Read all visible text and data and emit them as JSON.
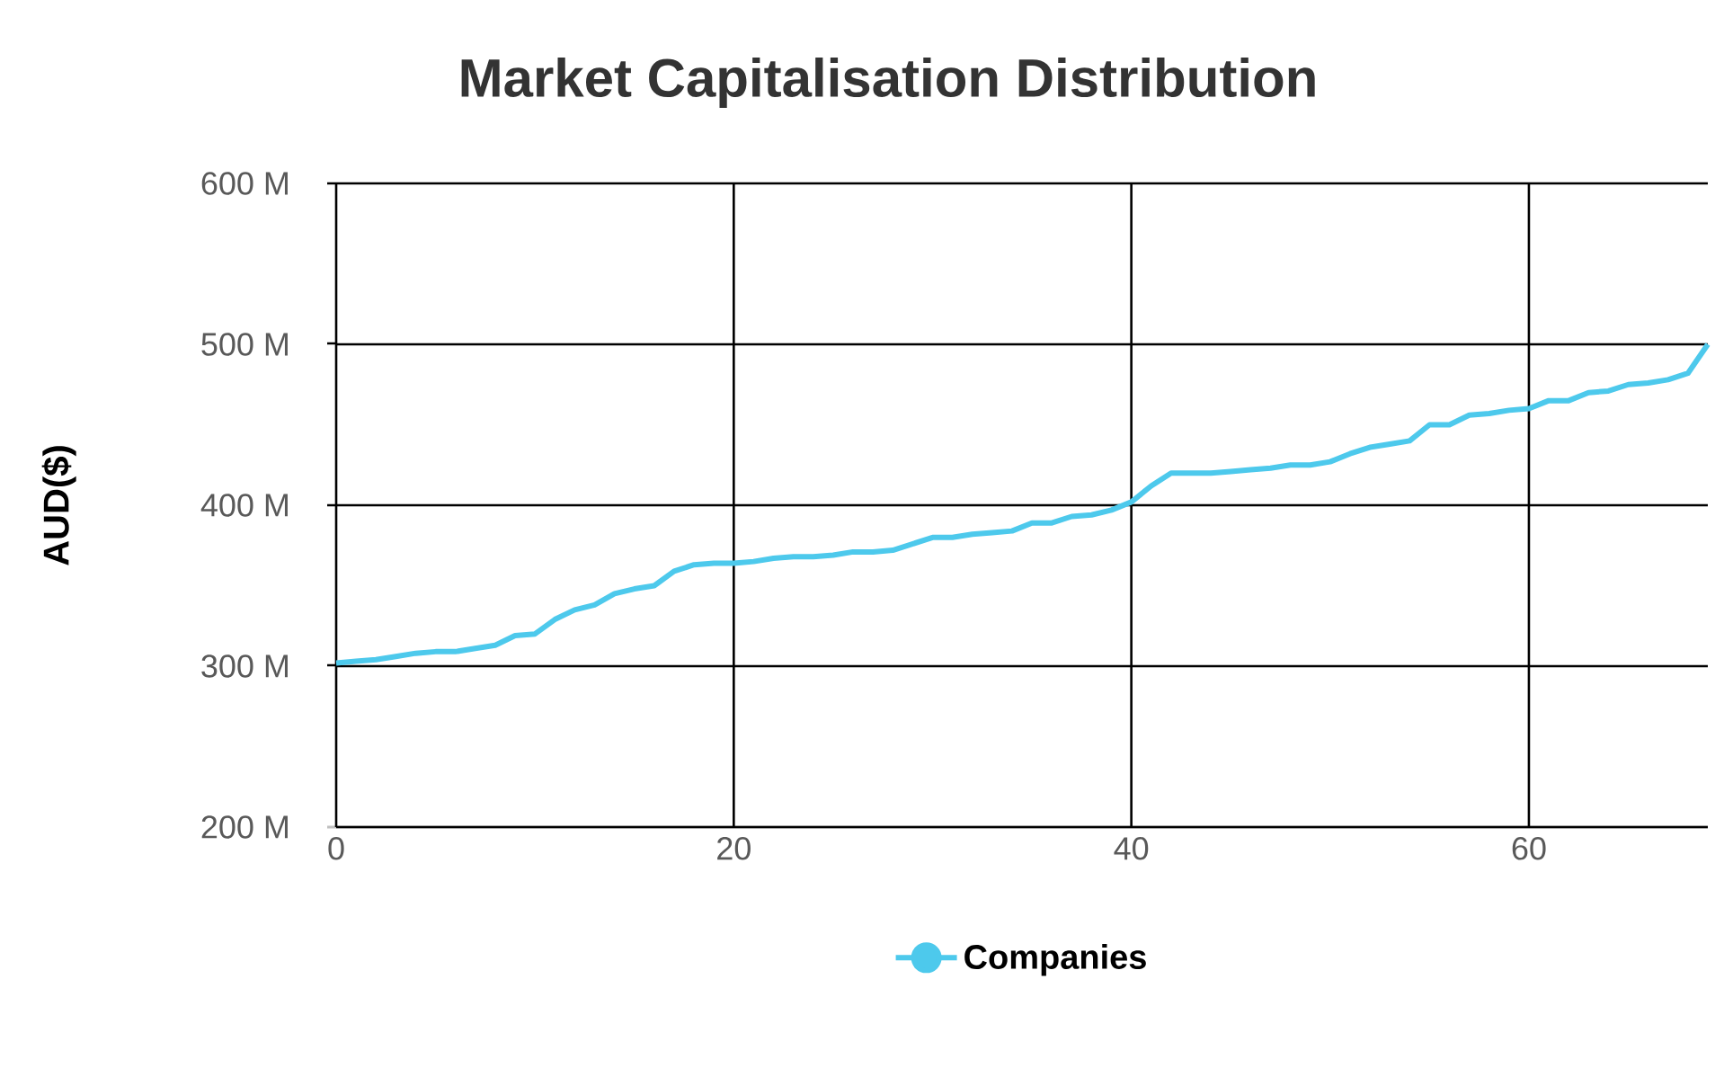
{
  "chart_data": {
    "type": "line",
    "title": "Market Capitalisation Distribution",
    "ylabel": "AUD($)",
    "x": [
      0,
      1,
      2,
      3,
      4,
      5,
      6,
      7,
      8,
      9,
      10,
      11,
      12,
      13,
      14,
      15,
      16,
      17,
      18,
      19,
      20,
      21,
      22,
      23,
      24,
      25,
      26,
      27,
      28,
      29,
      30,
      31,
      32,
      33,
      34,
      35,
      36,
      37,
      38,
      39,
      40,
      41,
      42,
      43,
      44,
      45,
      46,
      47,
      48,
      49,
      50,
      51,
      52,
      53,
      54,
      55,
      56,
      57,
      58,
      59,
      60,
      61,
      62,
      63,
      64,
      65,
      66,
      67,
      68,
      69
    ],
    "series": [
      {
        "name": "Companies",
        "color": "#4dc9ec",
        "values": [
          302,
          303,
          304,
          306,
          308,
          309,
          309,
          311,
          313,
          319,
          320,
          329,
          335,
          338,
          345,
          348,
          350,
          359,
          363,
          364,
          364,
          365,
          367,
          368,
          368,
          369,
          371,
          371,
          372,
          376,
          380,
          380,
          382,
          383,
          384,
          389,
          389,
          393,
          394,
          397,
          402,
          412,
          420,
          420,
          420,
          421,
          422,
          423,
          425,
          425,
          427,
          432,
          436,
          438,
          440,
          450,
          450,
          456,
          457,
          459,
          460,
          465,
          465,
          470,
          471,
          475,
          476,
          478,
          482,
          500
        ]
      }
    ],
    "xlim": [
      0,
      69
    ],
    "xticks": [
      0,
      20,
      40,
      60
    ],
    "ylim": [
      200,
      600
    ],
    "yticks": [
      {
        "value": 200,
        "label": "200 M"
      },
      {
        "value": 300,
        "label": "300 M"
      },
      {
        "value": 400,
        "label": "400 M"
      },
      {
        "value": 500,
        "label": "500 M"
      },
      {
        "value": 600,
        "label": "600 M"
      }
    ],
    "grid": true,
    "legend": "bottom",
    "marker": "none",
    "line_style": "solid"
  }
}
